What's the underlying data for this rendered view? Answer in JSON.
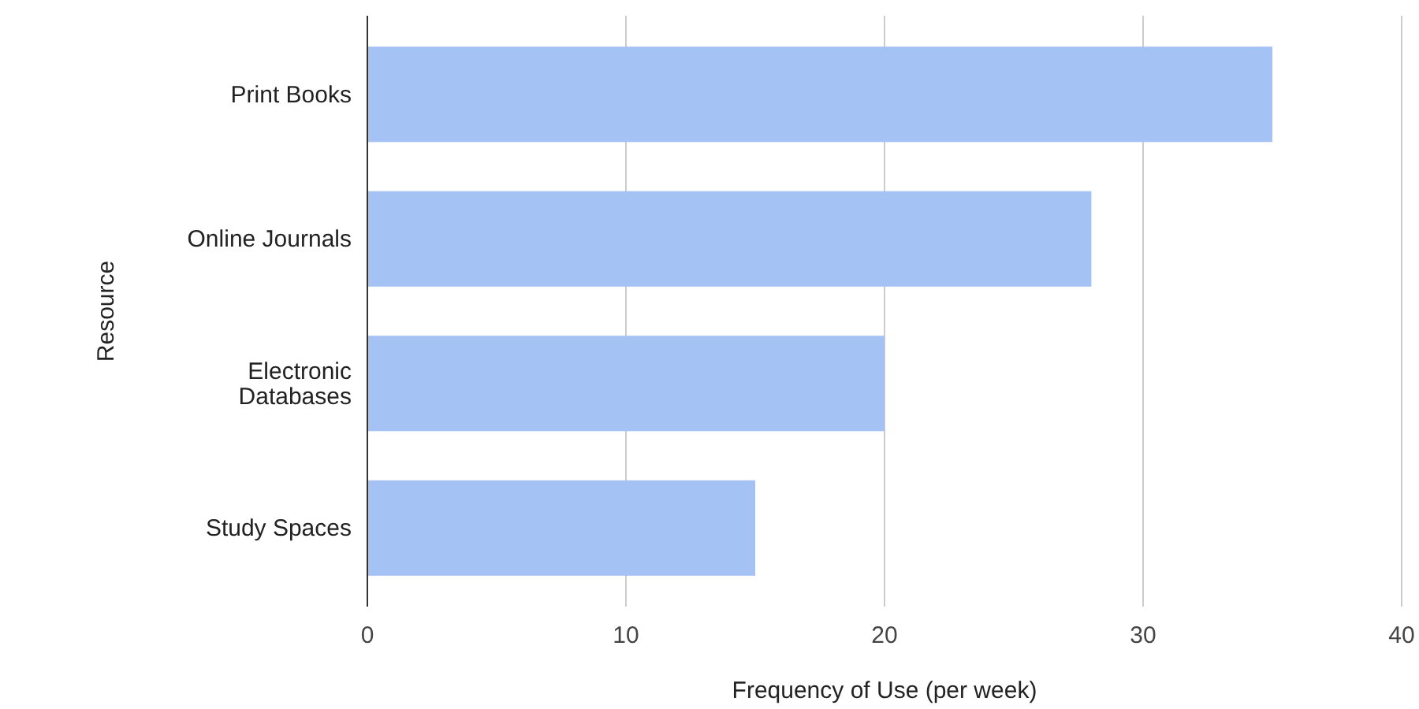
{
  "chart_data": {
    "type": "bar",
    "orientation": "horizontal",
    "xlabel": "Frequency of Use (per week)",
    "ylabel": "Resource",
    "categories": [
      "Print Books",
      "Online Journals",
      "Electronic Databases",
      "Study Spaces"
    ],
    "values": [
      35,
      28,
      20,
      15
    ],
    "color": "#a4c2f4",
    "xlim": [
      0,
      40
    ],
    "xticks": [
      0,
      10,
      20,
      30,
      40
    ],
    "grid": "x"
  }
}
